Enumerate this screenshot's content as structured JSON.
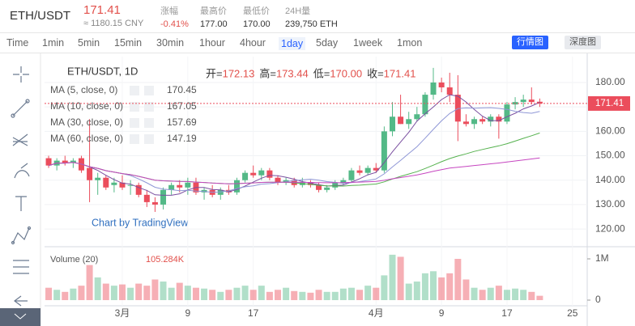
{
  "header": {
    "symbol": "ETH/USDT",
    "price": "171.41",
    "cny": "≈ 1180.15 CNY",
    "stats": [
      {
        "label": "涨幅",
        "value": "-0.41%"
      },
      {
        "label": "最高价",
        "value": "177.00"
      },
      {
        "label": "最低价",
        "value": "170.00"
      },
      {
        "label": "24H量",
        "value": "239,750 ETH"
      }
    ]
  },
  "toolbar": {
    "intervals": [
      "Time",
      "1min",
      "5min",
      "15min",
      "30min",
      "1hour",
      "4hour",
      "1day",
      "5day",
      "1week",
      "1mon"
    ],
    "active": "1day",
    "buttons": [
      "行情图",
      "深度图"
    ]
  },
  "chart_data": {
    "type": "candlestick",
    "title": "ETH/USDT, 1D",
    "ohlc_legend": [
      {
        "label": "开=",
        "value": "172.13"
      },
      {
        "label": "高=",
        "value": "173.44"
      },
      {
        "label": "低=",
        "value": "170.00"
      },
      {
        "label": "收=",
        "value": "171.41"
      }
    ],
    "ma": [
      {
        "label": "MA (5, close, 0)",
        "value": "170.45",
        "color": "#7a4fa0"
      },
      {
        "label": "MA (10, close, 0)",
        "value": "167.05",
        "color": "#8f97d6"
      },
      {
        "label": "MA (30, close, 0)",
        "value": "157.69",
        "color": "#56b24f"
      },
      {
        "label": "MA (60, close, 0)",
        "value": "147.19",
        "color": "#c646c0"
      }
    ],
    "watermark": "Chart by TradingView",
    "up_color": "#53b987",
    "down_color": "#eb4d5c",
    "candles": [
      [
        149,
        150,
        145,
        146
      ],
      [
        146,
        149,
        144,
        148
      ],
      [
        148,
        150,
        146,
        147
      ],
      [
        147,
        149,
        145,
        148
      ],
      [
        149,
        150,
        143,
        144
      ],
      [
        145,
        165,
        131,
        140
      ],
      [
        140,
        143,
        134,
        141
      ],
      [
        141,
        142,
        136,
        137
      ],
      [
        138,
        141,
        135,
        139
      ],
      [
        139,
        142,
        136,
        137
      ],
      [
        138,
        140,
        134,
        138
      ],
      [
        138,
        139,
        133,
        134
      ],
      [
        134,
        136,
        129,
        131
      ],
      [
        131,
        133,
        127,
        130
      ],
      [
        130,
        137,
        128,
        136
      ],
      [
        136,
        139,
        134,
        138
      ],
      [
        138,
        140,
        135,
        137
      ],
      [
        137,
        141,
        134,
        139
      ],
      [
        139,
        141,
        134,
        135
      ],
      [
        135,
        137,
        132,
        136
      ],
      [
        136,
        138,
        133,
        134
      ],
      [
        134,
        137,
        132,
        136
      ],
      [
        136,
        138,
        134,
        135
      ],
      [
        135,
        141,
        134,
        140
      ],
      [
        140,
        144,
        139,
        143
      ],
      [
        143,
        146,
        141,
        142
      ],
      [
        142,
        145,
        140,
        144
      ],
      [
        144,
        145,
        140,
        141
      ],
      [
        141,
        142,
        138,
        139
      ],
      [
        139,
        141,
        138,
        140
      ],
      [
        140,
        141,
        137,
        138
      ],
      [
        138,
        141,
        137,
        139
      ],
      [
        139,
        140,
        137,
        138
      ],
      [
        138,
        139,
        135,
        136
      ],
      [
        136,
        138,
        135,
        137
      ],
      [
        137,
        140,
        136,
        139
      ],
      [
        139,
        141,
        138,
        140
      ],
      [
        140,
        145,
        139,
        144
      ],
      [
        144,
        146,
        142,
        143
      ],
      [
        143,
        146,
        142,
        145
      ],
      [
        145,
        147,
        143,
        144
      ],
      [
        144,
        162,
        143,
        160
      ],
      [
        160,
        172,
        158,
        166
      ],
      [
        166,
        175,
        163,
        163
      ],
      [
        163,
        168,
        161,
        165
      ],
      [
        165,
        170,
        164,
        167
      ],
      [
        167,
        176,
        166,
        175
      ],
      [
        175,
        186,
        173,
        180
      ],
      [
        180,
        182,
        176,
        178
      ],
      [
        178,
        184,
        172,
        175
      ],
      [
        175,
        183,
        156,
        164
      ],
      [
        164,
        167,
        162,
        163
      ],
      [
        163,
        166,
        161,
        165
      ],
      [
        165,
        166,
        163,
        164
      ],
      [
        164,
        167,
        162,
        166
      ],
      [
        166,
        167,
        157,
        164
      ],
      [
        164,
        172,
        163,
        171
      ],
      [
        171,
        174,
        169,
        172
      ],
      [
        172,
        175,
        170,
        173
      ],
      [
        173,
        178,
        171,
        172
      ],
      [
        172.13,
        173.44,
        170.0,
        171.41
      ]
    ],
    "ylim": [
      114.4,
      190.6
    ],
    "yticks": [
      {
        "value": 120,
        "label": "120.00"
      },
      {
        "value": 130,
        "label": "130.00"
      },
      {
        "value": 140,
        "label": "140.00"
      },
      {
        "value": 150,
        "label": "150.00"
      },
      {
        "value": 160,
        "label": "160.00"
      },
      {
        "value": 170,
        "label": "170.00"
      },
      {
        "value": 180,
        "label": "180.00"
      }
    ],
    "xlim": [
      -0.5,
      65.8
    ],
    "xticks": [
      {
        "value": 9,
        "label": "3月"
      },
      {
        "value": 17,
        "label": "9"
      },
      {
        "value": 25,
        "label": "17"
      },
      {
        "value": 40,
        "label": "4月"
      },
      {
        "value": 48,
        "label": "9"
      },
      {
        "value": 56,
        "label": "17"
      },
      {
        "value": 64,
        "label": "25"
      }
    ],
    "volume": {
      "name": "Volume (20)",
      "value_label": "105.284K",
      "values": [
        300000,
        250000,
        200000,
        280000,
        350000,
        850000,
        550000,
        400000,
        350000,
        380000,
        300000,
        400000,
        350000,
        500000,
        450000,
        300000,
        420000,
        350000,
        300000,
        280000,
        250000,
        200000,
        250000,
        300000,
        350000,
        250000,
        350000,
        200000,
        250000,
        300000,
        220000,
        200000,
        180000,
        250000,
        200000,
        200000,
        280000,
        300000,
        250000,
        350000,
        300000,
        600000,
        1100000,
        1050000,
        400000,
        450000,
        650000,
        700000,
        550000,
        650000,
        1000000,
        500000,
        300000,
        250000,
        300000,
        350000,
        250000,
        280000,
        250000,
        200000,
        105284
      ],
      "ylim": [
        -137000,
        1235000
      ],
      "yticks": [
        0,
        {
          "value": 1000000,
          "label": "1M"
        }
      ]
    }
  }
}
